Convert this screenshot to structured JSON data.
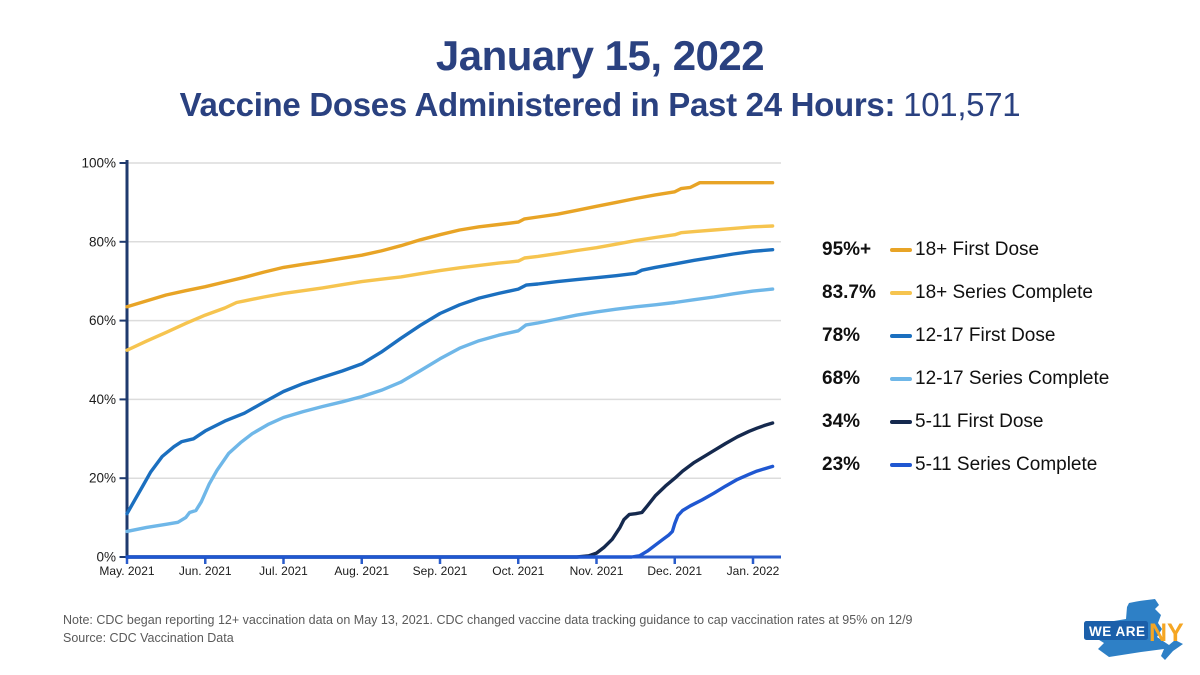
{
  "title": "January 15, 2022",
  "subtitle_label": "Vaccine Doses Administered in Past 24 Hours:",
  "subtitle_value": "101,571",
  "note": "Note: CDC began reporting 12+ vaccination data on May 13, 2021. CDC changed vaccine data tracking guidance to cap vaccination rates at 95% on 12/9",
  "source": "Source: CDC Vaccination Data",
  "logo": {
    "we_are": "WE ARE",
    "ny": "NY"
  },
  "colors": {
    "title_text": "#2A4180",
    "y_axis": "#1F3A6E",
    "x_axis": "#2A5CCB",
    "gridline": "#DCDCDC",
    "tick_label": "#1b1b1b",
    "note_text": "#5a5a5a",
    "logo_state_blue": "#2E80C6",
    "logo_band_blue": "#1B5FAA",
    "logo_ny_orange": "#F5A623"
  },
  "chart_data": {
    "type": "line",
    "title": "",
    "xlabel": "",
    "ylabel": "",
    "x_unit": "months since May 2021",
    "xlim": [
      0,
      8.3
    ],
    "ylim": [
      0,
      100
    ],
    "grid": "horizontal",
    "legend_position": "right",
    "x_tick_labels": [
      "May. 2021",
      "Jun. 2021",
      "Jul. 2021",
      "Aug. 2021",
      "Sep. 2021",
      "Oct. 2021",
      "Nov. 2021",
      "Dec. 2021",
      "Jan. 2022"
    ],
    "y_tick_labels": [
      "0%",
      "20%",
      "40%",
      "60%",
      "80%",
      "100%"
    ],
    "y_tick_values": [
      0,
      20,
      40,
      60,
      80,
      100
    ],
    "series": [
      {
        "name": "18+ First Dose",
        "value_label": "95%+",
        "color": "#E8A426",
        "points": [
          [
            0,
            63.5
          ],
          [
            0.25,
            65
          ],
          [
            0.5,
            66.5
          ],
          [
            0.75,
            67.6
          ],
          [
            1,
            68.6
          ],
          [
            1.25,
            69.8
          ],
          [
            1.5,
            71
          ],
          [
            1.75,
            72.3
          ],
          [
            2,
            73.5
          ],
          [
            2.25,
            74.3
          ],
          [
            2.5,
            75
          ],
          [
            2.75,
            75.8
          ],
          [
            3,
            76.6
          ],
          [
            3.25,
            77.7
          ],
          [
            3.5,
            79
          ],
          [
            3.75,
            80.5
          ],
          [
            4,
            81.8
          ],
          [
            4.25,
            83
          ],
          [
            4.5,
            83.8
          ],
          [
            4.75,
            84.4
          ],
          [
            5,
            85
          ],
          [
            5.08,
            85.8
          ],
          [
            5.25,
            86.3
          ],
          [
            5.5,
            87
          ],
          [
            5.75,
            88
          ],
          [
            6,
            89
          ],
          [
            6.25,
            90
          ],
          [
            6.5,
            91
          ],
          [
            6.75,
            91.9
          ],
          [
            7,
            92.7
          ],
          [
            7.08,
            93.5
          ],
          [
            7.2,
            93.8
          ],
          [
            7.32,
            95
          ],
          [
            7.5,
            95
          ],
          [
            7.75,
            95
          ],
          [
            8,
            95
          ],
          [
            8.25,
            95
          ]
        ]
      },
      {
        "name": "18+ Series Complete",
        "value_label": "83.7%",
        "color": "#F6C44F",
        "points": [
          [
            0,
            52.5
          ],
          [
            0.25,
            54.8
          ],
          [
            0.5,
            57
          ],
          [
            0.75,
            59.3
          ],
          [
            1,
            61.4
          ],
          [
            1.25,
            63.2
          ],
          [
            1.4,
            64.6
          ],
          [
            1.5,
            65
          ],
          [
            1.75,
            66
          ],
          [
            2,
            66.9
          ],
          [
            2.25,
            67.6
          ],
          [
            2.5,
            68.3
          ],
          [
            2.75,
            69.1
          ],
          [
            3,
            69.9
          ],
          [
            3.25,
            70.5
          ],
          [
            3.5,
            71.1
          ],
          [
            3.75,
            71.9
          ],
          [
            4,
            72.7
          ],
          [
            4.25,
            73.4
          ],
          [
            4.5,
            74
          ],
          [
            4.75,
            74.6
          ],
          [
            5,
            75.1
          ],
          [
            5.08,
            75.9
          ],
          [
            5.25,
            76.3
          ],
          [
            5.5,
            77
          ],
          [
            5.75,
            77.8
          ],
          [
            6,
            78.5
          ],
          [
            6.25,
            79.4
          ],
          [
            6.5,
            80.3
          ],
          [
            6.75,
            81.1
          ],
          [
            7,
            81.8
          ],
          [
            7.08,
            82.3
          ],
          [
            7.25,
            82.6
          ],
          [
            7.5,
            83
          ],
          [
            7.75,
            83.4
          ],
          [
            8,
            83.8
          ],
          [
            8.25,
            84
          ]
        ]
      },
      {
        "name": "12-17 First Dose",
        "value_label": "78%",
        "color": "#1B6FBF",
        "points": [
          [
            0,
            11
          ],
          [
            0.1,
            14.5
          ],
          [
            0.2,
            18
          ],
          [
            0.3,
            21.5
          ],
          [
            0.45,
            25.5
          ],
          [
            0.6,
            28
          ],
          [
            0.7,
            29.3
          ],
          [
            0.85,
            30
          ],
          [
            1,
            32
          ],
          [
            1.25,
            34.5
          ],
          [
            1.5,
            36.5
          ],
          [
            1.75,
            39.3
          ],
          [
            2,
            42
          ],
          [
            2.25,
            44
          ],
          [
            2.5,
            45.6
          ],
          [
            2.75,
            47.2
          ],
          [
            3,
            49
          ],
          [
            3.25,
            52
          ],
          [
            3.5,
            55.5
          ],
          [
            3.75,
            58.8
          ],
          [
            4,
            61.8
          ],
          [
            4.25,
            64
          ],
          [
            4.5,
            65.7
          ],
          [
            4.75,
            66.9
          ],
          [
            5,
            68
          ],
          [
            5.1,
            69
          ],
          [
            5.25,
            69.3
          ],
          [
            5.5,
            69.9
          ],
          [
            5.75,
            70.4
          ],
          [
            6,
            70.9
          ],
          [
            6.25,
            71.4
          ],
          [
            6.5,
            72
          ],
          [
            6.58,
            72.8
          ],
          [
            6.75,
            73.5
          ],
          [
            7,
            74.4
          ],
          [
            7.25,
            75.3
          ],
          [
            7.5,
            76.1
          ],
          [
            7.75,
            76.9
          ],
          [
            8,
            77.6
          ],
          [
            8.25,
            78
          ]
        ]
      },
      {
        "name": "12-17 Series Complete",
        "value_label": "68%",
        "color": "#6FB7E8",
        "points": [
          [
            0,
            6.5
          ],
          [
            0.25,
            7.5
          ],
          [
            0.5,
            8.3
          ],
          [
            0.65,
            8.8
          ],
          [
            0.75,
            10
          ],
          [
            0.8,
            11.3
          ],
          [
            0.88,
            11.8
          ],
          [
            0.95,
            14
          ],
          [
            1.05,
            18.5
          ],
          [
            1.15,
            22
          ],
          [
            1.3,
            26.3
          ],
          [
            1.45,
            29
          ],
          [
            1.6,
            31.3
          ],
          [
            1.8,
            33.6
          ],
          [
            2,
            35.4
          ],
          [
            2.25,
            36.9
          ],
          [
            2.5,
            38.2
          ],
          [
            2.75,
            39.4
          ],
          [
            3,
            40.7
          ],
          [
            3.25,
            42.3
          ],
          [
            3.5,
            44.4
          ],
          [
            3.75,
            47.3
          ],
          [
            4,
            50.3
          ],
          [
            4.25,
            53
          ],
          [
            4.5,
            54.9
          ],
          [
            4.75,
            56.3
          ],
          [
            5,
            57.4
          ],
          [
            5.1,
            58.9
          ],
          [
            5.25,
            59.4
          ],
          [
            5.5,
            60.4
          ],
          [
            5.75,
            61.4
          ],
          [
            6,
            62.2
          ],
          [
            6.25,
            62.9
          ],
          [
            6.5,
            63.5
          ],
          [
            6.75,
            64
          ],
          [
            7,
            64.6
          ],
          [
            7.25,
            65.3
          ],
          [
            7.5,
            66
          ],
          [
            7.75,
            66.8
          ],
          [
            8,
            67.5
          ],
          [
            8.25,
            68
          ]
        ]
      },
      {
        "name": "5-11 First Dose",
        "value_label": "34%",
        "color": "#15294E",
        "points": [
          [
            0,
            0
          ],
          [
            5.75,
            0
          ],
          [
            5.9,
            0.3
          ],
          [
            6,
            1
          ],
          [
            6.1,
            2.5
          ],
          [
            6.2,
            4.5
          ],
          [
            6.3,
            7.5
          ],
          [
            6.35,
            9.5
          ],
          [
            6.42,
            10.8
          ],
          [
            6.5,
            11
          ],
          [
            6.58,
            11.3
          ],
          [
            6.65,
            13
          ],
          [
            6.75,
            15.5
          ],
          [
            6.88,
            18
          ],
          [
            7,
            20
          ],
          [
            7.1,
            21.8
          ],
          [
            7.25,
            24
          ],
          [
            7.4,
            25.8
          ],
          [
            7.5,
            27
          ],
          [
            7.65,
            28.8
          ],
          [
            7.8,
            30.5
          ],
          [
            7.95,
            31.9
          ],
          [
            8.05,
            32.7
          ],
          [
            8.15,
            33.4
          ],
          [
            8.25,
            34
          ]
        ]
      },
      {
        "name": "5-11 Series Complete",
        "value_label": "23%",
        "color": "#1F57D1",
        "points": [
          [
            0,
            0
          ],
          [
            6.45,
            0
          ],
          [
            6.55,
            0.3
          ],
          [
            6.65,
            1.5
          ],
          [
            6.75,
            3
          ],
          [
            6.85,
            4.5
          ],
          [
            6.92,
            5.5
          ],
          [
            6.97,
            6.5
          ],
          [
            7.0,
            8.5
          ],
          [
            7.04,
            10.5
          ],
          [
            7.1,
            11.8
          ],
          [
            7.2,
            13
          ],
          [
            7.35,
            14.5
          ],
          [
            7.5,
            16.2
          ],
          [
            7.65,
            18
          ],
          [
            7.8,
            19.7
          ],
          [
            7.95,
            21
          ],
          [
            8.05,
            21.8
          ],
          [
            8.15,
            22.4
          ],
          [
            8.25,
            23
          ]
        ]
      }
    ]
  }
}
